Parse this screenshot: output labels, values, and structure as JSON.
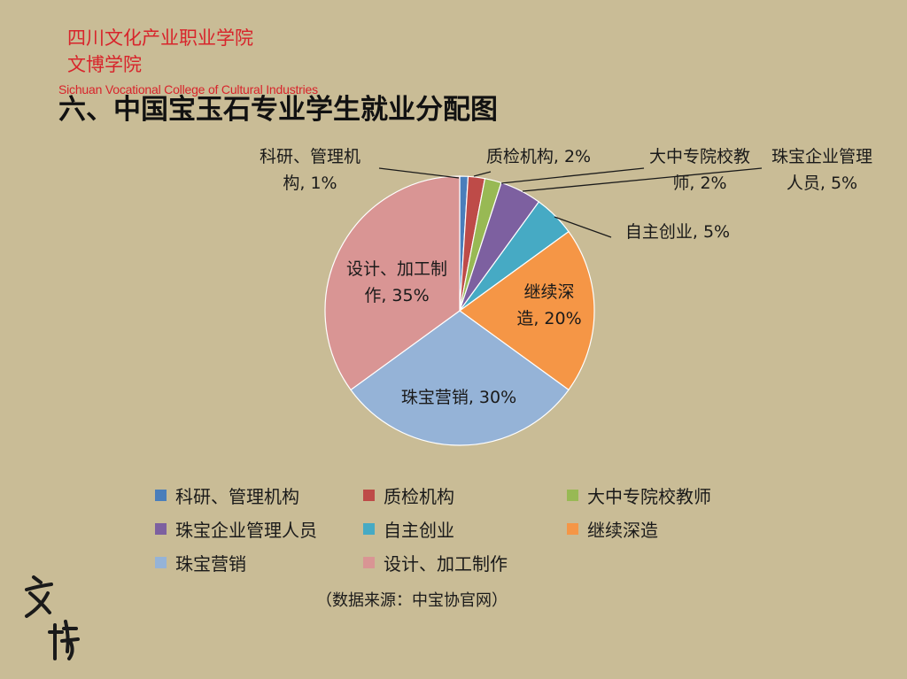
{
  "header": {
    "school_cn": "四川文化产业职业学院",
    "school_cn_2": "文博学院",
    "school_en": "Sichuan Vocational College of Cultural Industries"
  },
  "title": "六、中国宝玉石专业学生就业分配图",
  "source_note": "（数据来源：中宝协官网）",
  "logo_text": "文博",
  "colors": {
    "background": "#c9bc96",
    "header_red": "#d8242b"
  },
  "chart_data": {
    "type": "pie",
    "title": "",
    "unit": "%",
    "legend_position": "bottom",
    "slices": [
      {
        "name": "科研、管理机构",
        "value": 1,
        "label": "科研、管理机构, 1%",
        "color": "#4a7ebb"
      },
      {
        "name": "质检机构",
        "value": 2,
        "label": "质检机构, 2%",
        "color": "#be4b48"
      },
      {
        "name": "大中专院校教师",
        "value": 2,
        "label": "大中专院校教师, 2%",
        "color": "#98b954"
      },
      {
        "name": "珠宝企业管理人员",
        "value": 5,
        "label": "珠宝企业管理人员, 5%",
        "color": "#7d60a0"
      },
      {
        "name": "自主创业",
        "value": 5,
        "label": "自主创业, 5%",
        "color": "#46aac4"
      },
      {
        "name": "继续深造",
        "value": 20,
        "label": "继续深造, 20%",
        "color": "#f59646"
      },
      {
        "name": "珠宝营销",
        "value": 30,
        "label": "珠宝营销, 30%",
        "color": "#95b3d7"
      },
      {
        "name": "设计、加工制作",
        "value": 35,
        "label": "设计、加工制作, 35%",
        "color": "#d99594"
      }
    ]
  }
}
